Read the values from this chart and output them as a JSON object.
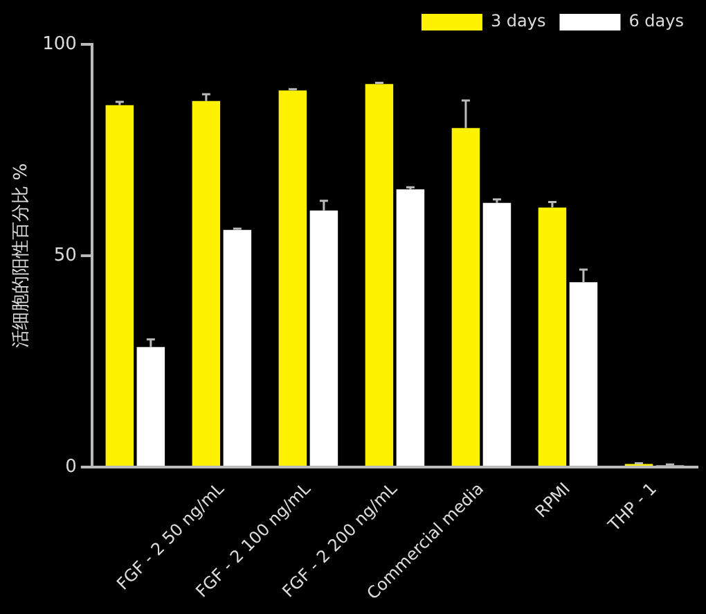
{
  "chart_data": {
    "type": "bar",
    "ylabel": "活细胞的阳性百分比 %",
    "categories": [
      null,
      "FGF - 2 50 ng/mL",
      "FGF - 2 100 ng/mL",
      "FGF - 2 200 ng/mL",
      "Commercial media",
      "RPMI",
      "THP - 1"
    ],
    "series": [
      {
        "name": "3 days",
        "color": "#fff200",
        "values": [
          85.6,
          86.6,
          89.1,
          90.6,
          80.2,
          61.4,
          0.7
        ],
        "errors": [
          [
            85.6,
            86.4
          ],
          [
            86.6,
            88.2
          ],
          [
            89.1,
            89.4
          ],
          [
            90.6,
            90.9
          ],
          [
            80.2,
            86.7
          ],
          [
            61.4,
            62.7
          ],
          [
            0.7,
            0.9
          ]
        ]
      },
      {
        "name": "6 days",
        "color": "#ffffff",
        "values": [
          28.4,
          56.1,
          60.7,
          65.7,
          62.5,
          43.7,
          0.4
        ],
        "errors": [
          [
            28.4,
            30.2
          ],
          [
            56.1,
            56.4
          ],
          [
            60.7,
            63.0
          ],
          [
            65.7,
            66.2
          ],
          [
            62.5,
            63.3
          ],
          [
            43.7,
            46.7
          ],
          [
            0.4,
            0.6
          ]
        ]
      }
    ],
    "ylim": [
      0,
      100
    ],
    "yticks": [
      0,
      50,
      100
    ],
    "grid": false,
    "legend": "top right"
  }
}
